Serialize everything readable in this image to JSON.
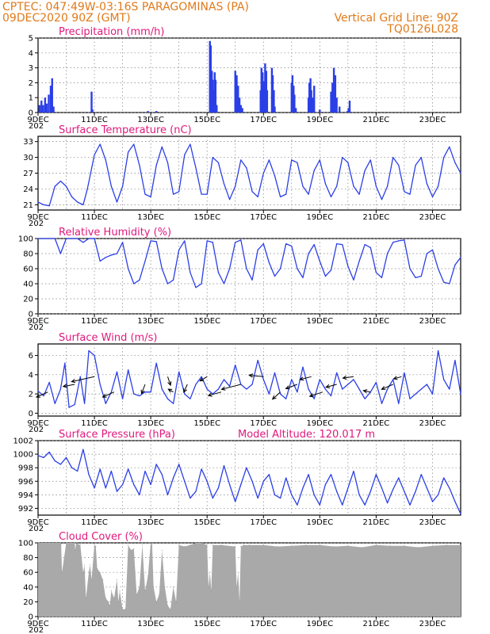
{
  "header": {
    "line1_left": "CPTEC:   047:49W-03:16S  PARAGOMINAS (PA)",
    "line2_left": "09DEC2020 90Z (GMT)",
    "line1_right": "Vertical Grid Line: 90Z",
    "line2_right": "TQ0126L028"
  },
  "colors": {
    "header": "#e07a1a",
    "title": "#e0197d",
    "series": "#2b3fe6",
    "cloud": "#a9a9a9",
    "grid": "#7f7f7f"
  },
  "x_axis": {
    "tick_labels": [
      "9DEC",
      "11DEC",
      "13DEC",
      "15DEC",
      "17DEC",
      "19DEC",
      "21DEC",
      "23DEC"
    ],
    "year_fragment": "202"
  },
  "chart_data": [
    {
      "id": "precip",
      "type": "bar",
      "title": "Precipitation (mm/h)",
      "ylim": [
        0,
        5
      ],
      "yticks": [
        0,
        1,
        2,
        3,
        4,
        5
      ],
      "x": [
        0.05,
        0.12,
        0.18,
        0.25,
        0.31,
        0.38,
        0.45,
        0.5,
        0.55,
        1.9,
        1.93,
        3.9,
        4.2,
        6.1,
        6.13,
        6.17,
        6.2,
        6.23,
        6.27,
        6.3,
        6.34,
        7.0,
        7.05,
        7.1,
        7.15,
        7.2,
        7.25,
        7.9,
        7.93,
        7.97,
        8.0,
        8.03,
        8.06,
        8.1,
        8.13,
        8.3,
        8.33,
        8.37,
        8.4,
        9.0,
        9.03,
        9.07,
        9.1,
        9.15,
        9.6,
        9.63,
        9.67,
        9.7,
        9.74,
        9.8,
        10.0,
        10.4,
        10.45,
        10.5,
        10.55,
        10.6,
        10.7,
        10.98,
        11.02,
        11.06
      ],
      "values": [
        0.5,
        0.8,
        0.5,
        1.0,
        0.6,
        1.2,
        1.8,
        2.3,
        0.4,
        1.4,
        0.2,
        0.1,
        0.1,
        4.8,
        4.5,
        2.8,
        2.2,
        1.5,
        2.7,
        2.2,
        0.5,
        2.8,
        2.5,
        1.8,
        1.0,
        0.5,
        0.3,
        1.5,
        3.0,
        2.7,
        1.8,
        2.1,
        3.3,
        2.8,
        1.5,
        3.0,
        2.5,
        1.5,
        0.4,
        2.0,
        2.5,
        1.8,
        1.2,
        0.3,
        1.0,
        2.0,
        2.3,
        1.5,
        1.0,
        1.8,
        0.2,
        1.4,
        2.0,
        3.0,
        2.5,
        1.0,
        0.4,
        0.1,
        0.3,
        0.8
      ]
    },
    {
      "id": "temp",
      "type": "line",
      "title": "Surface Temperature (nC)",
      "ylim": [
        20,
        34
      ],
      "yticks": [
        21,
        24,
        27,
        30,
        33
      ],
      "x": [
        0,
        0.2,
        0.4,
        0.6,
        0.8,
        1.0,
        1.2,
        1.4,
        1.6,
        1.75,
        2.0,
        2.2,
        2.4,
        2.6,
        2.8,
        3.0,
        3.2,
        3.4,
        3.6,
        3.8,
        4.0,
        4.2,
        4.4,
        4.6,
        4.8,
        5.0,
        5.2,
        5.4,
        5.6,
        5.8,
        6.0,
        6.2,
        6.4,
        6.6,
        6.8,
        7.0,
        7.2,
        7.4,
        7.6,
        7.8,
        8.0,
        8.2,
        8.4,
        8.6,
        8.8,
        9.0,
        9.2,
        9.4,
        9.6,
        9.8,
        10.0,
        10.2,
        10.4,
        10.6,
        10.8,
        11.0,
        11.2,
        11.4,
        11.6,
        11.8,
        12.0,
        12.2,
        12.4,
        12.6,
        12.8,
        13.0,
        13.2,
        13.4,
        13.6,
        13.8,
        14.0,
        14.2,
        14.4,
        14.6,
        14.8,
        15.0
      ],
      "values": [
        21.5,
        21.0,
        20.8,
        24.5,
        25.5,
        24.5,
        22.5,
        21.5,
        21.0,
        24.0,
        30.5,
        32.5,
        29.5,
        24.5,
        21.5,
        24.5,
        31.0,
        32.5,
        28.5,
        23.0,
        22.5,
        28.5,
        32.0,
        29.0,
        23.0,
        23.5,
        30.5,
        32.5,
        28.0,
        23.0,
        23.0,
        30.0,
        29.0,
        25.0,
        22.0,
        24.5,
        29.5,
        28.0,
        23.5,
        22.5,
        27.0,
        29.5,
        26.5,
        22.5,
        23.0,
        29.5,
        29.0,
        24.5,
        23.0,
        27.5,
        29.5,
        25.0,
        22.5,
        24.5,
        30.0,
        29.0,
        24.5,
        23.0,
        27.5,
        29.5,
        24.5,
        22.0,
        24.5,
        30.0,
        28.5,
        23.5,
        23.0,
        28.5,
        30.0,
        25.0,
        22.5,
        24.5,
        30.0,
        32.0,
        29.0,
        27.0
      ]
    },
    {
      "id": "rh",
      "type": "line",
      "title": "Relative Humidity (%)",
      "ylim": [
        0,
        100
      ],
      "yticks": [
        0,
        20,
        40,
        60,
        80,
        100
      ],
      "x": [
        0,
        0.3,
        0.6,
        0.8,
        1.0,
        1.2,
        1.4,
        1.6,
        1.8,
        2.0,
        2.2,
        2.4,
        2.6,
        2.8,
        3.0,
        3.2,
        3.4,
        3.6,
        3.8,
        4.0,
        4.2,
        4.4,
        4.6,
        4.8,
        5.0,
        5.2,
        5.4,
        5.6,
        5.8,
        6.0,
        6.2,
        6.4,
        6.6,
        6.8,
        7.0,
        7.2,
        7.4,
        7.6,
        7.8,
        8.0,
        8.2,
        8.4,
        8.6,
        8.8,
        9.0,
        9.2,
        9.4,
        9.6,
        9.8,
        10.0,
        10.2,
        10.4,
        10.6,
        10.8,
        11.0,
        11.2,
        11.4,
        11.6,
        11.8,
        12.0,
        12.2,
        12.4,
        12.6,
        12.8,
        13.0,
        13.2,
        13.4,
        13.6,
        13.8,
        14.0,
        14.2,
        14.4,
        14.6,
        14.8,
        15.0
      ],
      "values": [
        100,
        100,
        100,
        80,
        100,
        100,
        100,
        95,
        100,
        100,
        70,
        75,
        78,
        80,
        95,
        60,
        40,
        45,
        70,
        97,
        96,
        60,
        40,
        45,
        85,
        97,
        55,
        35,
        40,
        97,
        95,
        55,
        40,
        60,
        95,
        98,
        60,
        45,
        85,
        93,
        68,
        50,
        60,
        93,
        90,
        60,
        48,
        80,
        92,
        70,
        50,
        58,
        93,
        92,
        63,
        45,
        70,
        92,
        88,
        55,
        48,
        80,
        95,
        97,
        98,
        60,
        48,
        50,
        80,
        85,
        60,
        42,
        40,
        65,
        75
      ]
    },
    {
      "id": "wind",
      "type": "line",
      "title": "Surface Wind (m/s)",
      "ylim": [
        -0.3,
        7.2
      ],
      "yticks": [
        0,
        2,
        4,
        6
      ],
      "x": [
        0,
        0.2,
        0.4,
        0.6,
        0.8,
        0.95,
        1.1,
        1.3,
        1.5,
        1.65,
        1.8,
        2.0,
        2.2,
        2.4,
        2.6,
        2.8,
        3.0,
        3.2,
        3.4,
        3.6,
        3.8,
        4.0,
        4.2,
        4.4,
        4.6,
        4.8,
        5.0,
        5.2,
        5.4,
        5.6,
        5.8,
        6.0,
        6.2,
        6.4,
        6.6,
        6.8,
        7.0,
        7.2,
        7.4,
        7.6,
        7.8,
        8.0,
        8.2,
        8.4,
        8.6,
        8.8,
        9.0,
        9.2,
        9.4,
        9.6,
        9.8,
        10.0,
        10.2,
        10.4,
        10.6,
        10.8,
        11.0,
        11.2,
        11.4,
        11.6,
        11.8,
        12.0,
        12.2,
        12.4,
        12.6,
        12.8,
        13.0,
        13.2,
        13.4,
        13.6,
        13.8,
        14.0,
        14.2,
        14.4,
        14.6,
        14.8,
        15.0
      ],
      "values": [
        2.3,
        1.8,
        3.2,
        1.0,
        2.5,
        5.2,
        0.6,
        0.9,
        3.8,
        1.0,
        6.5,
        6.0,
        3.0,
        1.0,
        2.2,
        4.3,
        1.5,
        4.5,
        2.0,
        1.8,
        2.2,
        2.2,
        5.2,
        2.5,
        1.5,
        1.0,
        4.3,
        2.0,
        1.5,
        3.0,
        3.8,
        2.5,
        2.0,
        2.5,
        3.5,
        2.8,
        5.0,
        3.0,
        2.5,
        3.0,
        5.5,
        3.5,
        2.0,
        4.2,
        2.0,
        1.5,
        3.5,
        2.2,
        4.8,
        2.5,
        1.5,
        3.5,
        2.5,
        1.8,
        4.2,
        2.5,
        3.0,
        3.5,
        2.5,
        1.5,
        2.2,
        3.2,
        1.0,
        2.5,
        3.5,
        1.0,
        4.2,
        1.5,
        2.0,
        2.5,
        3.0,
        2.0,
        6.5,
        3.5,
        2.5,
        5.5,
        2.0
      ],
      "vectors": {
        "x": [
          0.35,
          1.3,
          2.0,
          2.7,
          3.8,
          4.6,
          4.8,
          5.3,
          6.0,
          6.5,
          7.2,
          8.0,
          8.6,
          9.2,
          9.7,
          10.1,
          10.6,
          11.2,
          11.8,
          12.6,
          12.9
        ],
        "u": [
          -1.6,
          -1.6,
          -3.2,
          -1.6,
          -0.5,
          0.4,
          -0.7,
          -0.5,
          -1.0,
          -1.8,
          -2.7,
          -2.0,
          -1.1,
          -1.6,
          -1.6,
          -1.8,
          -1.5,
          -1.5,
          -1.0,
          -1.6,
          -1.1
        ],
        "v": [
          -0.7,
          -0.3,
          -0.7,
          -0.7,
          -1.3,
          -1.2,
          0.4,
          -1.1,
          -0.6,
          -0.5,
          -0.7,
          0.2,
          -1.0,
          -0.6,
          -0.4,
          -0.6,
          -0.4,
          -0.2,
          0.2,
          -0.7,
          -0.3
        ]
      }
    },
    {
      "id": "pres",
      "type": "line",
      "title": "Surface Pressure (hPa)",
      "annotation": "Model Altitude: 120.017 m",
      "ylim": [
        991,
        1002
      ],
      "yticks": [
        992,
        994,
        996,
        998,
        1000,
        1002
      ],
      "x": [
        0,
        0.2,
        0.4,
        0.6,
        0.8,
        1.0,
        1.2,
        1.4,
        1.6,
        1.8,
        2.0,
        2.2,
        2.4,
        2.6,
        2.8,
        3.0,
        3.2,
        3.4,
        3.6,
        3.8,
        4.0,
        4.2,
        4.4,
        4.6,
        4.8,
        5.0,
        5.2,
        5.4,
        5.6,
        5.8,
        6.0,
        6.2,
        6.4,
        6.6,
        6.8,
        7.0,
        7.2,
        7.4,
        7.6,
        7.8,
        8.0,
        8.2,
        8.4,
        8.6,
        8.8,
        9.0,
        9.2,
        9.4,
        9.6,
        9.8,
        10.0,
        10.2,
        10.4,
        10.6,
        10.8,
        11.0,
        11.2,
        11.4,
        11.6,
        11.8,
        12.0,
        12.2,
        12.4,
        12.6,
        12.8,
        13.0,
        13.2,
        13.4,
        13.6,
        13.8,
        14.0,
        14.2,
        14.4,
        14.6,
        14.8,
        15.0
      ],
      "values": [
        999.8,
        999.5,
        1000.3,
        999.0,
        998.5,
        999.5,
        998.0,
        997.5,
        1000.7,
        997.0,
        995.0,
        997.8,
        995.0,
        997.5,
        994.5,
        995.5,
        997.8,
        995.5,
        994.0,
        997.5,
        995.5,
        998.5,
        997.0,
        994.0,
        996.5,
        998.5,
        996.0,
        993.5,
        994.5,
        997.8,
        996.0,
        993.5,
        995.0,
        998.3,
        995.5,
        993.0,
        995.5,
        998.0,
        996.0,
        993.5,
        996.0,
        997.0,
        994.0,
        993.5,
        996.5,
        994.0,
        992.5,
        995.0,
        997.0,
        994.0,
        992.5,
        995.5,
        997.0,
        994.5,
        992.5,
        995.0,
        997.5,
        994.0,
        992.5,
        994.5,
        997.0,
        995.0,
        992.8,
        994.8,
        996.5,
        994.5,
        992.5,
        994.5,
        997.0,
        995.0,
        993.0,
        994.0,
        996.5,
        995.0,
        993.0,
        991.2
      ]
    },
    {
      "id": "cloud",
      "type": "area",
      "title": "Cloud Cover (%)",
      "ylim": [
        0,
        100
      ],
      "yticks": [
        0,
        20,
        40,
        60,
        80,
        100
      ],
      "x": [
        0,
        0.05,
        0.8,
        0.82,
        0.85,
        1.0,
        1.3,
        1.32,
        1.35,
        1.5,
        1.6,
        1.65,
        1.7,
        1.8,
        1.85,
        1.9,
        2.0,
        2.05,
        2.1,
        2.2,
        2.3,
        2.4,
        2.5,
        2.55,
        2.6,
        2.7,
        2.8,
        2.85,
        2.9,
        3.0,
        3.1,
        3.2,
        3.3,
        3.4,
        3.5,
        3.6,
        3.7,
        3.8,
        3.9,
        4.0,
        4.05,
        4.1,
        4.2,
        4.3,
        4.4,
        4.5,
        4.6,
        4.7,
        4.8,
        4.9,
        5.0,
        5.2,
        5.4,
        5.6,
        5.8,
        6.0,
        6.05,
        6.1,
        6.15,
        6.2,
        6.5,
        7.0,
        7.05,
        7.1,
        7.15,
        7.2,
        7.3,
        7.5,
        8.0,
        8.5,
        9.0,
        9.5,
        10.0,
        10.5,
        11.0,
        11.5,
        12.0,
        12.5,
        13.0,
        13.5,
        14.0,
        14.5,
        15.0
      ],
      "values": [
        100,
        100,
        100,
        98,
        60,
        100,
        100,
        90,
        100,
        97,
        60,
        70,
        25,
        60,
        70,
        50,
        98,
        95,
        65,
        60,
        50,
        25,
        20,
        15,
        35,
        25,
        50,
        20,
        35,
        10,
        10,
        97,
        90,
        92,
        30,
        40,
        97,
        35,
        55,
        100,
        97,
        40,
        20,
        30,
        90,
        40,
        15,
        10,
        40,
        20,
        97,
        95,
        97,
        100,
        100,
        97,
        40,
        60,
        35,
        97,
        97,
        95,
        40,
        60,
        20,
        95,
        97,
        97,
        97,
        95,
        96,
        97,
        97,
        95,
        96,
        94,
        97,
        96,
        96,
        94,
        96,
        97,
        97
      ]
    }
  ]
}
